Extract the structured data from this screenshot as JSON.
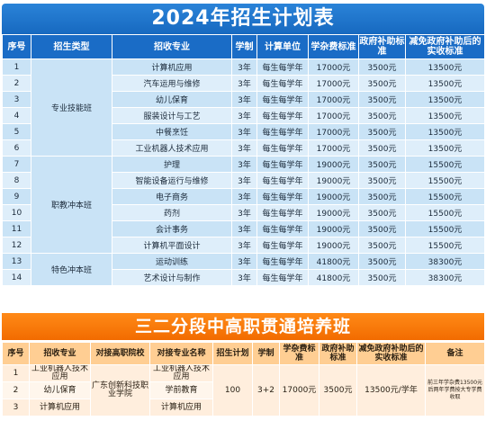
{
  "table1": {
    "title": "2024年招生计划表",
    "headers": [
      "序号",
      "招生类型",
      "招收专业",
      "学制",
      "计算单位",
      "学杂费标准",
      "政府补助标准",
      "减免政府补助后的实收标准"
    ],
    "groups": [
      "专业技能班",
      "职教冲本班",
      "特色冲本班"
    ],
    "rows": [
      {
        "no": "1",
        "major": "计算机应用",
        "years": "3年",
        "unit": "每生每学年",
        "fee": "17000元",
        "subsidy": "3500元",
        "net": "13500元"
      },
      {
        "no": "2",
        "major": "汽车运用与维修",
        "years": "3年",
        "unit": "每生每学年",
        "fee": "17000元",
        "subsidy": "3500元",
        "net": "13500元"
      },
      {
        "no": "3",
        "major": "幼儿保育",
        "years": "3年",
        "unit": "每生每学年",
        "fee": "17000元",
        "subsidy": "3500元",
        "net": "13500元"
      },
      {
        "no": "4",
        "major": "服装设计与工艺",
        "years": "3年",
        "unit": "每生每学年",
        "fee": "17000元",
        "subsidy": "3500元",
        "net": "13500元"
      },
      {
        "no": "5",
        "major": "中餐烹饪",
        "years": "3年",
        "unit": "每生每学年",
        "fee": "17000元",
        "subsidy": "3500元",
        "net": "13500元"
      },
      {
        "no": "6",
        "major": "工业机器人技术应用",
        "years": "3年",
        "unit": "每生每学年",
        "fee": "17000元",
        "subsidy": "3500元",
        "net": "13500元"
      },
      {
        "no": "7",
        "major": "护理",
        "years": "3年",
        "unit": "每生每学年",
        "fee": "19000元",
        "subsidy": "3500元",
        "net": "15500元"
      },
      {
        "no": "8",
        "major": "智能设备运行与维修",
        "years": "3年",
        "unit": "每生每学年",
        "fee": "19000元",
        "subsidy": "3500元",
        "net": "15500元"
      },
      {
        "no": "9",
        "major": "电子商务",
        "years": "3年",
        "unit": "每生每学年",
        "fee": "19000元",
        "subsidy": "3500元",
        "net": "15500元"
      },
      {
        "no": "10",
        "major": "药剂",
        "years": "3年",
        "unit": "每生每学年",
        "fee": "19000元",
        "subsidy": "3500元",
        "net": "15500元"
      },
      {
        "no": "11",
        "major": "会计事务",
        "years": "3年",
        "unit": "每生每学年",
        "fee": "19000元",
        "subsidy": "3500元",
        "net": "15500元"
      },
      {
        "no": "12",
        "major": "计算机平面设计",
        "years": "3年",
        "unit": "每生每学年",
        "fee": "19000元",
        "subsidy": "3500元",
        "net": "15500元"
      },
      {
        "no": "13",
        "major": "运动训练",
        "years": "3年",
        "unit": "每生每学年",
        "fee": "41800元",
        "subsidy": "3500元",
        "net": "38300元"
      },
      {
        "no": "14",
        "major": "艺术设计与制作",
        "years": "3年",
        "unit": "每生每学年",
        "fee": "41800元",
        "subsidy": "3500元",
        "net": "38300元"
      }
    ]
  },
  "table2": {
    "title": "三二分段中高职贯通培养班",
    "headers": [
      "序号",
      "招收专业",
      "对接高职院校",
      "对接专业名称",
      "招生计划",
      "学制",
      "学杂费标准",
      "政府补助标准",
      "减免政府补助后的实收标准",
      "备注"
    ],
    "rows": [
      {
        "no": "1",
        "major": "工业机器人技术应用",
        "target_major": "工业机器人技术应用"
      },
      {
        "no": "2",
        "major": "幼儿保育",
        "target_major": "学前教育"
      },
      {
        "no": "3",
        "major": "计算机应用",
        "target_major": "计算机应用"
      }
    ],
    "college": "广东创新科技职业学院",
    "plan": "100",
    "years": "3+2",
    "fee": "17000元",
    "subsidy": "3500元",
    "net": "13500元/学年",
    "note": "前三年学杂费13500元后两年学费按大专学费收取"
  }
}
